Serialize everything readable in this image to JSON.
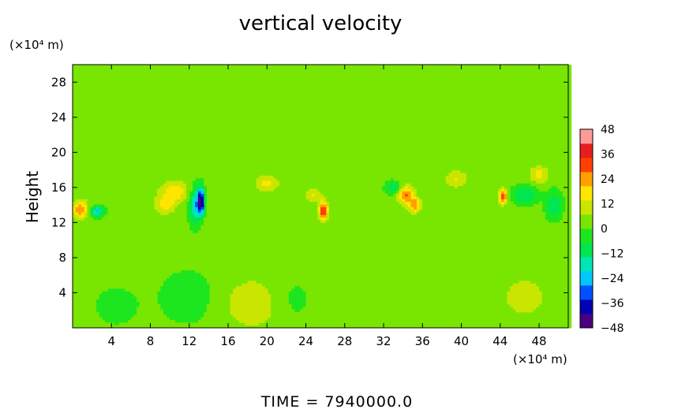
{
  "chart_data": {
    "type": "heatmap",
    "title": "vertical velocity",
    "ylabel": "Height",
    "y_unit": "(×10⁴ m)",
    "x_unit": "(×10⁴ m)",
    "xlabel": "",
    "xlim": [
      0,
      51
    ],
    "ylim": [
      0,
      30
    ],
    "x_ticks": [
      4,
      8,
      12,
      16,
      20,
      24,
      28,
      32,
      36,
      40,
      44,
      48
    ],
    "y_ticks": [
      4,
      8,
      12,
      16,
      20,
      24,
      28
    ],
    "colorbar": {
      "ticks": [
        48,
        36,
        24,
        12,
        0,
        -12,
        -24,
        -36,
        -48
      ],
      "range": [
        -48,
        48
      ],
      "colors": [
        "#4b0082",
        "#0000b4",
        "#0050ff",
        "#00c8ff",
        "#00e6b4",
        "#00e650",
        "#1ee61e",
        "#78e600",
        "#c8e600",
        "#ffe600",
        "#ffa000",
        "#ff4000",
        "#e61e1e",
        "#ff9a9a"
      ]
    },
    "background_value": 2,
    "features": [
      {
        "x": 0.8,
        "y": 13.5,
        "value": 24,
        "sx": 0.8,
        "sy": 1.0
      },
      {
        "x": 2.5,
        "y": 13.3,
        "value": -24,
        "sx": 0.7,
        "sy": 0.6
      },
      {
        "x": 13.2,
        "y": 14.5,
        "value": -46,
        "sx": 0.35,
        "sy": 1.4
      },
      {
        "x": 12.6,
        "y": 14.0,
        "value": -24,
        "sx": 0.6,
        "sy": 2.0
      },
      {
        "x": 10.5,
        "y": 15.5,
        "value": 16,
        "sx": 1.5,
        "sy": 1.2
      },
      {
        "x": 9.5,
        "y": 14.0,
        "value": 14,
        "sx": 1.0,
        "sy": 1.0
      },
      {
        "x": 25.8,
        "y": 13.4,
        "value": 34,
        "sx": 0.45,
        "sy": 1.1
      },
      {
        "x": 24.8,
        "y": 15.2,
        "value": 12,
        "sx": 0.8,
        "sy": 0.8
      },
      {
        "x": 34.3,
        "y": 15.2,
        "value": 26,
        "sx": 0.8,
        "sy": 1.0
      },
      {
        "x": 35.2,
        "y": 14.0,
        "value": 24,
        "sx": 0.6,
        "sy": 0.8
      },
      {
        "x": 33.0,
        "y": 16.0,
        "value": -14,
        "sx": 0.8,
        "sy": 0.7
      },
      {
        "x": 44.3,
        "y": 15.0,
        "value": 30,
        "sx": 0.45,
        "sy": 0.8
      },
      {
        "x": 46.5,
        "y": 15.2,
        "value": -16,
        "sx": 1.2,
        "sy": 1.0
      },
      {
        "x": 49.5,
        "y": 14.0,
        "value": -16,
        "sx": 0.8,
        "sy": 1.5
      },
      {
        "x": 48.0,
        "y": 17.5,
        "value": 14,
        "sx": 1.0,
        "sy": 1.0
      },
      {
        "x": 20.0,
        "y": 16.5,
        "value": 14,
        "sx": 1.2,
        "sy": 1.0
      },
      {
        "x": 39.5,
        "y": 17.0,
        "value": 12,
        "sx": 1.2,
        "sy": 1.0
      },
      {
        "x": 12.0,
        "y": 3.5,
        "value": -6,
        "sx": 3.0,
        "sy": 3.0
      },
      {
        "x": 18.5,
        "y": 2.8,
        "value": 9,
        "sx": 3.5,
        "sy": 3.2
      },
      {
        "x": 22.5,
        "y": 3.2,
        "value": -5,
        "sx": 2.0,
        "sy": 2.5
      },
      {
        "x": 4.5,
        "y": 2.5,
        "value": -4,
        "sx": 2.5,
        "sy": 2.5
      },
      {
        "x": 46.5,
        "y": 3.5,
        "value": 7,
        "sx": 3.0,
        "sy": 3.0
      }
    ],
    "time_label": "TIME  =  7940000.0"
  }
}
